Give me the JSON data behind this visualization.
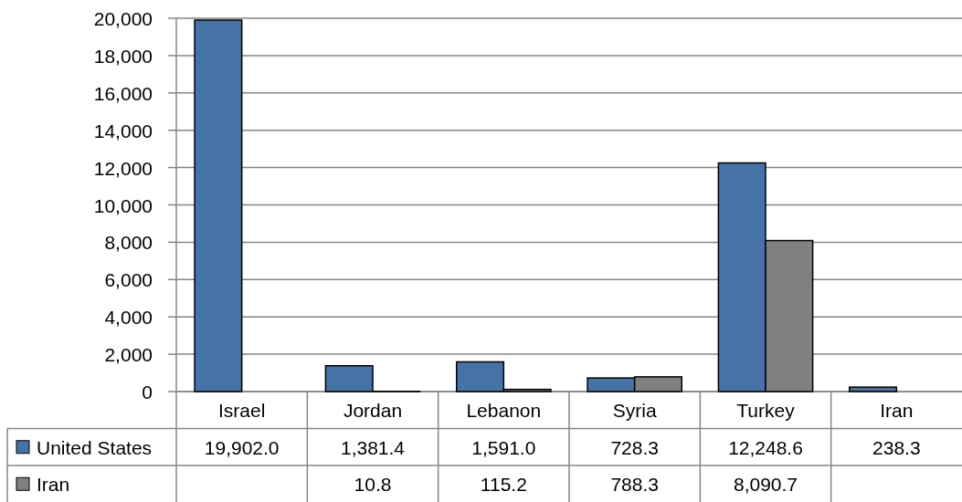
{
  "chart_data": {
    "type": "bar",
    "categories": [
      "Israel",
      "Jordan",
      "Lebanon",
      "Syria",
      "Turkey",
      "Iran"
    ],
    "series": [
      {
        "name": "United States",
        "color": "#4573a7",
        "values": [
          19902.0,
          1381.4,
          1591.0,
          728.3,
          12248.6,
          238.3
        ],
        "value_labels": [
          "19,902.0",
          "1,381.4",
          "1,591.0",
          "728.3",
          "12,248.6",
          "238.3"
        ]
      },
      {
        "name": "Iran",
        "color": "#808080",
        "values": [
          null,
          10.8,
          115.2,
          788.3,
          8090.7,
          null
        ],
        "value_labels": [
          null,
          "10.8",
          "115.2",
          "788.3",
          "8,090.7",
          null
        ]
      }
    ],
    "ylim": [
      0,
      20000
    ],
    "yticks": [
      0,
      {
        "value": 2000,
        "label": "2,000"
      },
      {
        "value": 4000,
        "label": "4,000"
      },
      {
        "value": 6000,
        "label": "6,000"
      },
      {
        "value": 8000,
        "label": "8,000"
      },
      {
        "value": 10000,
        "label": "10,000"
      },
      {
        "value": 12000,
        "label": "12,000"
      },
      {
        "value": 14000,
        "label": "14,000"
      },
      {
        "value": 16000,
        "label": "16,000"
      },
      {
        "value": 18000,
        "label": "18,000"
      },
      {
        "value": 20000,
        "label": "20,000"
      }
    ],
    "grid": "y",
    "legend": "bottom left"
  }
}
